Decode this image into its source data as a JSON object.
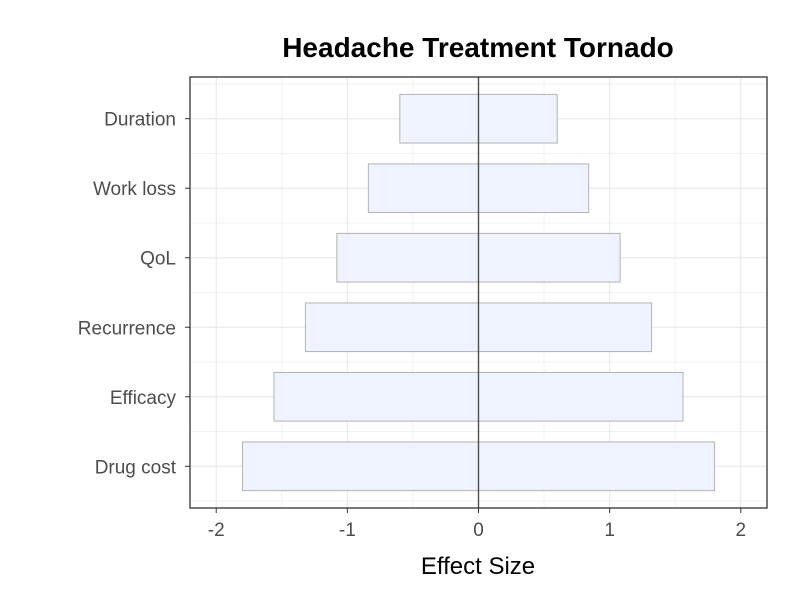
{
  "chart_data": {
    "type": "bar",
    "orientation": "horizontal",
    "title": "Headache Treatment Tornado",
    "xlabel": "Effect Size",
    "ylabel": "",
    "xlim": [
      -2.2,
      2.2
    ],
    "xticks": [
      -2,
      -1,
      0,
      1,
      2
    ],
    "xtick_labels": [
      "-2",
      "-1",
      "0",
      "1",
      "2"
    ],
    "categories": [
      "Duration",
      "Work loss",
      "QoL",
      "Recurrence",
      "Efficacy",
      "Drug cost"
    ],
    "series": [
      {
        "low": [
          -0.6,
          -0.84,
          -1.08,
          -1.32,
          -1.56,
          -1.8
        ],
        "high": [
          0.6,
          0.84,
          1.08,
          1.32,
          1.56,
          1.8
        ]
      }
    ],
    "reference_line": 0,
    "grid": true,
    "legend": "none",
    "colors": {
      "bar_fill": "#eef3ff",
      "bar_stroke": "#b3b3b3",
      "grid_major": "#e6e6e6",
      "grid_minor": "#f2f2f2",
      "panel_border": "#333333",
      "zero_line": "#4d4d4d"
    }
  }
}
